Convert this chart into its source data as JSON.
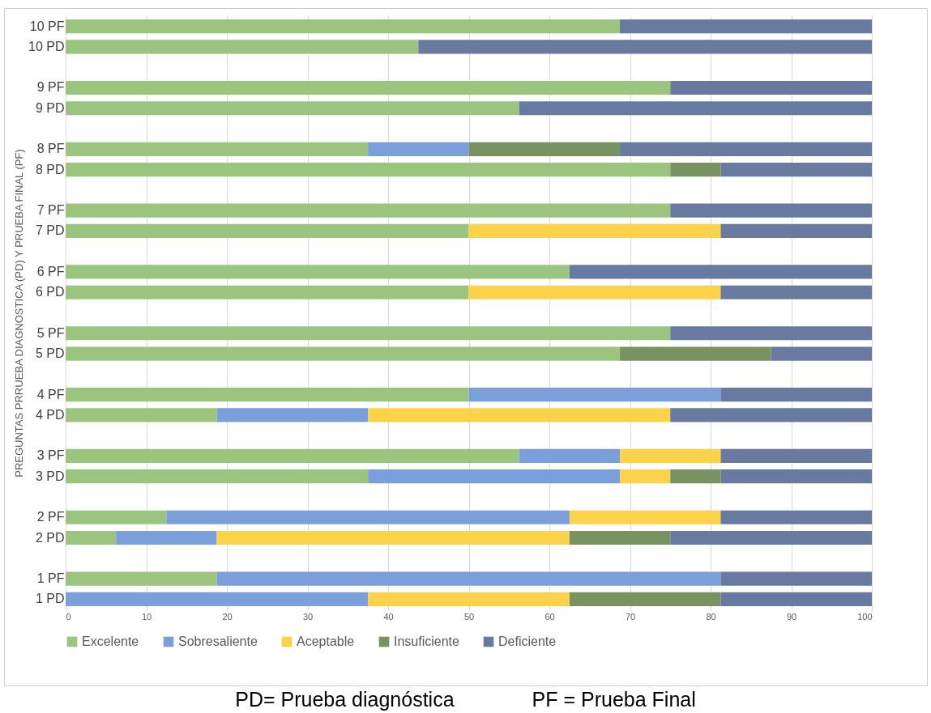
{
  "chart_data": {
    "type": "bar",
    "orientation": "horizontal",
    "stacked": true,
    "ylabel": "PREGUNTAS  PRRUEBA DIAGNOSTICA (PD) Y PRUEBA FINAL (PF)",
    "categories": [
      "10 PF",
      "10 PD",
      null,
      "9 PF",
      "9 PD",
      null,
      "8 PF",
      "8 PD",
      null,
      "7 PF",
      "7 PD",
      null,
      "6 PF",
      "6 PD",
      null,
      "5 PF",
      "5 PD",
      null,
      "4 PF",
      "4 PD",
      null,
      "3 PF",
      "3 PD",
      null,
      "2 PF",
      "2 PD",
      null,
      "1 PF",
      "1 PD"
    ],
    "series": [
      {
        "name": "Excelente",
        "color": "#9bc47e",
        "values": [
          68.75,
          43.75,
          null,
          75,
          56.25,
          null,
          37.5,
          75,
          null,
          75,
          50,
          null,
          62.5,
          50,
          null,
          75,
          68.75,
          null,
          50,
          18.75,
          null,
          56.25,
          37.5,
          null,
          12.5,
          6.25,
          null,
          18.75,
          0
        ]
      },
      {
        "name": "Sobresaliente",
        "color": "#7b9fdb",
        "values": [
          0,
          0,
          null,
          0,
          0,
          null,
          12.5,
          0,
          null,
          0,
          0,
          null,
          0,
          0,
          null,
          0,
          0,
          null,
          31.25,
          18.75,
          null,
          12.5,
          31.25,
          null,
          50,
          12.5,
          null,
          62.5,
          37.5
        ]
      },
      {
        "name": "Aceptable",
        "color": "#fdd24b",
        "values": [
          0,
          0,
          null,
          0,
          0,
          null,
          0,
          0,
          null,
          0,
          31.25,
          null,
          0,
          31.25,
          null,
          0,
          0,
          null,
          0,
          37.5,
          null,
          12.5,
          6.25,
          null,
          18.75,
          43.75,
          null,
          0,
          25
        ]
      },
      {
        "name": "Insuficiente",
        "color": "#78935f",
        "values": [
          0,
          0,
          null,
          0,
          0,
          null,
          18.75,
          6.25,
          null,
          0,
          0,
          null,
          0,
          0,
          null,
          0,
          18.75,
          null,
          0,
          0,
          null,
          0,
          6.25,
          null,
          0,
          12.5,
          null,
          0,
          18.75
        ]
      },
      {
        "name": "Deficiente",
        "color": "#687aa0",
        "values": [
          31.25,
          56.25,
          null,
          25,
          43.75,
          null,
          31.25,
          18.75,
          null,
          25,
          18.75,
          null,
          37.5,
          18.75,
          null,
          25,
          12.5,
          null,
          18.75,
          25,
          null,
          18.75,
          18.75,
          null,
          18.75,
          25,
          null,
          18.75,
          18.75
        ]
      }
    ],
    "xlim": [
      0,
      100
    ],
    "xticks": [
      0,
      10,
      20,
      30,
      40,
      50,
      60,
      70,
      80,
      90,
      100
    ],
    "grid": "x",
    "legend": "bottom",
    "annotations": [
      "PD= Prueba diagnóstica",
      "PF = Prueba Final"
    ]
  }
}
